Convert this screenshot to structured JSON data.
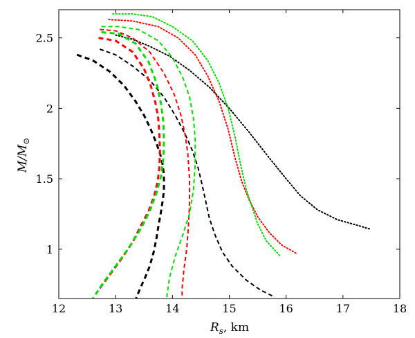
{
  "chart_data": {
    "type": "line",
    "title": "",
    "xlabel": "R_s, km",
    "ylabel": "M/M_⊙",
    "xlabel_main": "R",
    "xlabel_sub": "s",
    "xlabel_unit": ", km",
    "ylabel_main": "M/M",
    "ylabel_sub": "⊙",
    "xlim": [
      12,
      18
    ],
    "ylim": [
      0.65,
      2.7
    ],
    "xticks": [
      12,
      13,
      14,
      15,
      16,
      17,
      18
    ],
    "xtick_labels": [
      "12",
      "13",
      "14",
      "15",
      "16",
      "17",
      "18"
    ],
    "yticks": [
      1,
      1.5,
      2,
      2.5
    ],
    "ytick_labels": [
      "1",
      "1.5",
      "2",
      "2.5"
    ],
    "grid": false,
    "series": [
      {
        "name": "black-dashed-thick",
        "color": "#000000",
        "style": "dashed-thick",
        "x": [
          12.32,
          12.6,
          12.9,
          13.15,
          13.35,
          13.5,
          13.62,
          13.72,
          13.78,
          13.82,
          13.84,
          13.85,
          13.85,
          13.83,
          13.8,
          13.76,
          13.72,
          13.67,
          13.6,
          13.52,
          13.43,
          13.36
        ],
        "y": [
          2.38,
          2.34,
          2.26,
          2.16,
          2.05,
          1.95,
          1.85,
          1.75,
          1.68,
          1.62,
          1.56,
          1.5,
          1.42,
          1.35,
          1.27,
          1.18,
          1.08,
          0.98,
          0.88,
          0.8,
          0.72,
          0.65
        ]
      },
      {
        "name": "black-dashed-thin",
        "color": "#000000",
        "style": "dashed-thin",
        "x": [
          12.72,
          13.0,
          13.3,
          13.6,
          13.85,
          14.05,
          14.22,
          14.35,
          14.45,
          14.52,
          14.58,
          14.65,
          14.75,
          14.88,
          15.05,
          15.3,
          15.55,
          15.8
        ],
        "y": [
          2.42,
          2.38,
          2.3,
          2.2,
          2.08,
          1.95,
          1.82,
          1.7,
          1.58,
          1.46,
          1.35,
          1.22,
          1.1,
          0.98,
          0.88,
          0.78,
          0.71,
          0.66
        ]
      },
      {
        "name": "black-dotted",
        "color": "#000000",
        "style": "dotted",
        "x": [
          13.0,
          13.3,
          13.6,
          13.95,
          14.3,
          14.65,
          15.0,
          15.35,
          15.7,
          16.0,
          16.25,
          16.55,
          16.9,
          17.25,
          17.5
        ],
        "y": [
          2.52,
          2.49,
          2.44,
          2.37,
          2.27,
          2.15,
          2.0,
          1.83,
          1.65,
          1.5,
          1.38,
          1.28,
          1.21,
          1.17,
          1.14
        ]
      },
      {
        "name": "red-dashed-thick",
        "color": "#ff0000",
        "style": "dashed-thick",
        "x": [
          12.7,
          13.0,
          13.3,
          13.5,
          13.62,
          13.7,
          13.75,
          13.77,
          13.78,
          13.77,
          13.74,
          13.68,
          13.58,
          13.45,
          13.3,
          13.1,
          12.9,
          12.7
        ],
        "y": [
          2.5,
          2.48,
          2.4,
          2.28,
          2.16,
          2.04,
          1.93,
          1.82,
          1.7,
          1.58,
          1.48,
          1.38,
          1.27,
          1.17,
          1.05,
          0.93,
          0.82,
          0.71
        ]
      },
      {
        "name": "red-dashed-thin",
        "color": "#ff0000",
        "style": "dashed-thin",
        "x": [
          12.72,
          13.0,
          13.3,
          13.6,
          13.85,
          14.03,
          14.15,
          14.22,
          14.27,
          14.3,
          14.3,
          14.28,
          14.25,
          14.2,
          14.17,
          14.17
        ],
        "y": [
          2.56,
          2.55,
          2.5,
          2.4,
          2.25,
          2.1,
          1.95,
          1.82,
          1.68,
          1.5,
          1.32,
          1.15,
          1.0,
          0.85,
          0.72,
          0.65
        ]
      },
      {
        "name": "red-dotted",
        "color": "#ff0000",
        "style": "dotted",
        "x": [
          12.88,
          13.3,
          13.75,
          14.1,
          14.4,
          14.62,
          14.82,
          14.98,
          15.1,
          15.22,
          15.35,
          15.5,
          15.7,
          15.92,
          16.18
        ],
        "y": [
          2.63,
          2.62,
          2.58,
          2.5,
          2.38,
          2.23,
          2.05,
          1.85,
          1.65,
          1.48,
          1.35,
          1.23,
          1.12,
          1.03,
          0.97
        ]
      },
      {
        "name": "green-dashed-thick",
        "color": "#00dd00",
        "style": "dashed-thick",
        "x": [
          12.75,
          13.05,
          13.35,
          13.58,
          13.72,
          13.8,
          13.84,
          13.85,
          13.84,
          13.8,
          13.72,
          13.6,
          13.45,
          13.25,
          13.0,
          12.78,
          12.6
        ],
        "y": [
          2.54,
          2.53,
          2.46,
          2.33,
          2.18,
          2.03,
          1.9,
          1.77,
          1.65,
          1.52,
          1.4,
          1.27,
          1.15,
          1.02,
          0.88,
          0.76,
          0.65
        ]
      },
      {
        "name": "green-dashed-thin",
        "color": "#00dd00",
        "style": "dashed-thin",
        "x": [
          12.75,
          13.05,
          13.4,
          13.75,
          14.0,
          14.18,
          14.3,
          14.37,
          14.4,
          14.4,
          14.37,
          14.3,
          14.18,
          14.05,
          13.95,
          13.9
        ],
        "y": [
          2.58,
          2.58,
          2.56,
          2.48,
          2.36,
          2.22,
          2.08,
          1.93,
          1.78,
          1.6,
          1.42,
          1.25,
          1.1,
          0.95,
          0.8,
          0.66
        ]
      },
      {
        "name": "green-dotted",
        "color": "#00dd00",
        "style": "dotted",
        "x": [
          12.95,
          13.3,
          13.65,
          14.0,
          14.35,
          14.62,
          14.82,
          14.98,
          15.1,
          15.2,
          15.3,
          15.4,
          15.5,
          15.65,
          15.9
        ],
        "y": [
          2.67,
          2.67,
          2.65,
          2.58,
          2.48,
          2.34,
          2.18,
          2.0,
          1.8,
          1.6,
          1.42,
          1.3,
          1.18,
          1.06,
          0.95
        ]
      }
    ]
  }
}
